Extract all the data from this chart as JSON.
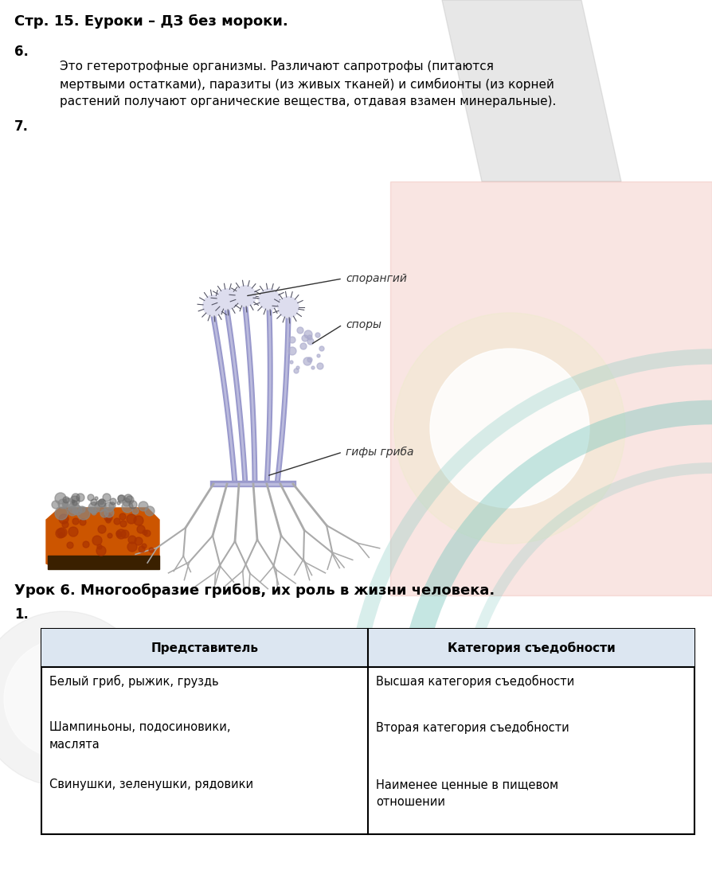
{
  "title": "Стр. 15. Еуроки – ДЗ без мороки.",
  "section6_label": "6.",
  "section6_line1": "Это гетеротрофные организмы. Различают сапротрофы (питаются",
  "section6_line2": "мертвыми остатками), паразиты (из живых тканей) и симбионты (из корней",
  "section6_line3": "растений получают органические вещества, отдавая взамен минеральные).",
  "section7_label": "7.",
  "label_sporangiy": "спорангий",
  "label_spory": "споры",
  "label_gify": "гифы гриба",
  "lesson_title": "Урок 6. Многообразие грибов, их роль в жизни человека.",
  "section1_label": "1.",
  "table_headers": [
    "Представитель",
    "Категория съедобности"
  ],
  "col1_items": [
    "Белый гриб, рыжик, груздь",
    "Шампиньоны, подосиновики,\nмаслята",
    "Свинушки, зеленушки, рядовики"
  ],
  "col2_items": [
    "Высшая категория съедобности",
    "Вторая категория съедобности",
    "Наименее ценные в пищевом\nотношении"
  ],
  "bg_color": "#ffffff",
  "text_color": "#000000",
  "table_header_bg": "#dce6f1",
  "font_size_title": 13,
  "font_size_text": 11,
  "font_size_label": 12
}
